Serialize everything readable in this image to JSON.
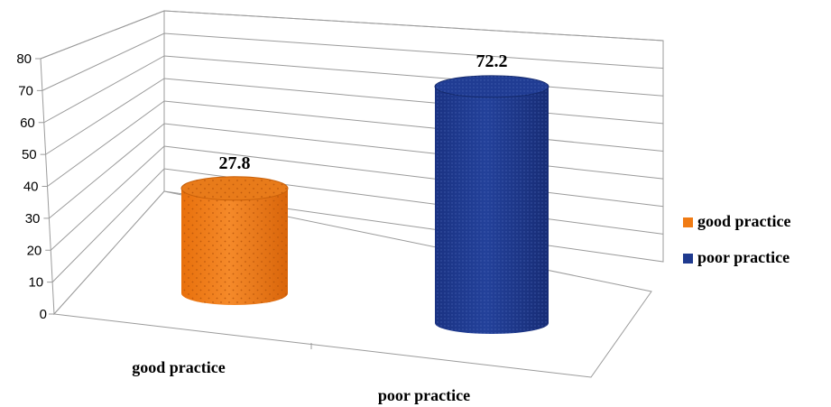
{
  "chart_data": {
    "type": "bar",
    "style": "3d-cylinder",
    "categories": [
      "good practice",
      "poor practice"
    ],
    "series": [
      {
        "category": "good practice",
        "value": 27.8,
        "color": "#F07B14",
        "pattern": "dotted"
      },
      {
        "category": "poor practice",
        "value": 72.2,
        "color": "#1F3A8F",
        "pattern": "dotted"
      }
    ],
    "title": "",
    "xlabel": "",
    "ylabel": "",
    "ylim": [
      0,
      80
    ],
    "yticks": [
      "0",
      "10",
      "20",
      "30",
      "40",
      "50",
      "60",
      "70",
      "80"
    ],
    "data_labels": [
      "27.8",
      "72.2"
    ],
    "grid": true,
    "legend": {
      "position": "right",
      "entries": [
        {
          "label": "good practice",
          "color": "#F07B14"
        },
        {
          "label": "poor practice",
          "color": "#1F3A8F"
        }
      ]
    }
  }
}
